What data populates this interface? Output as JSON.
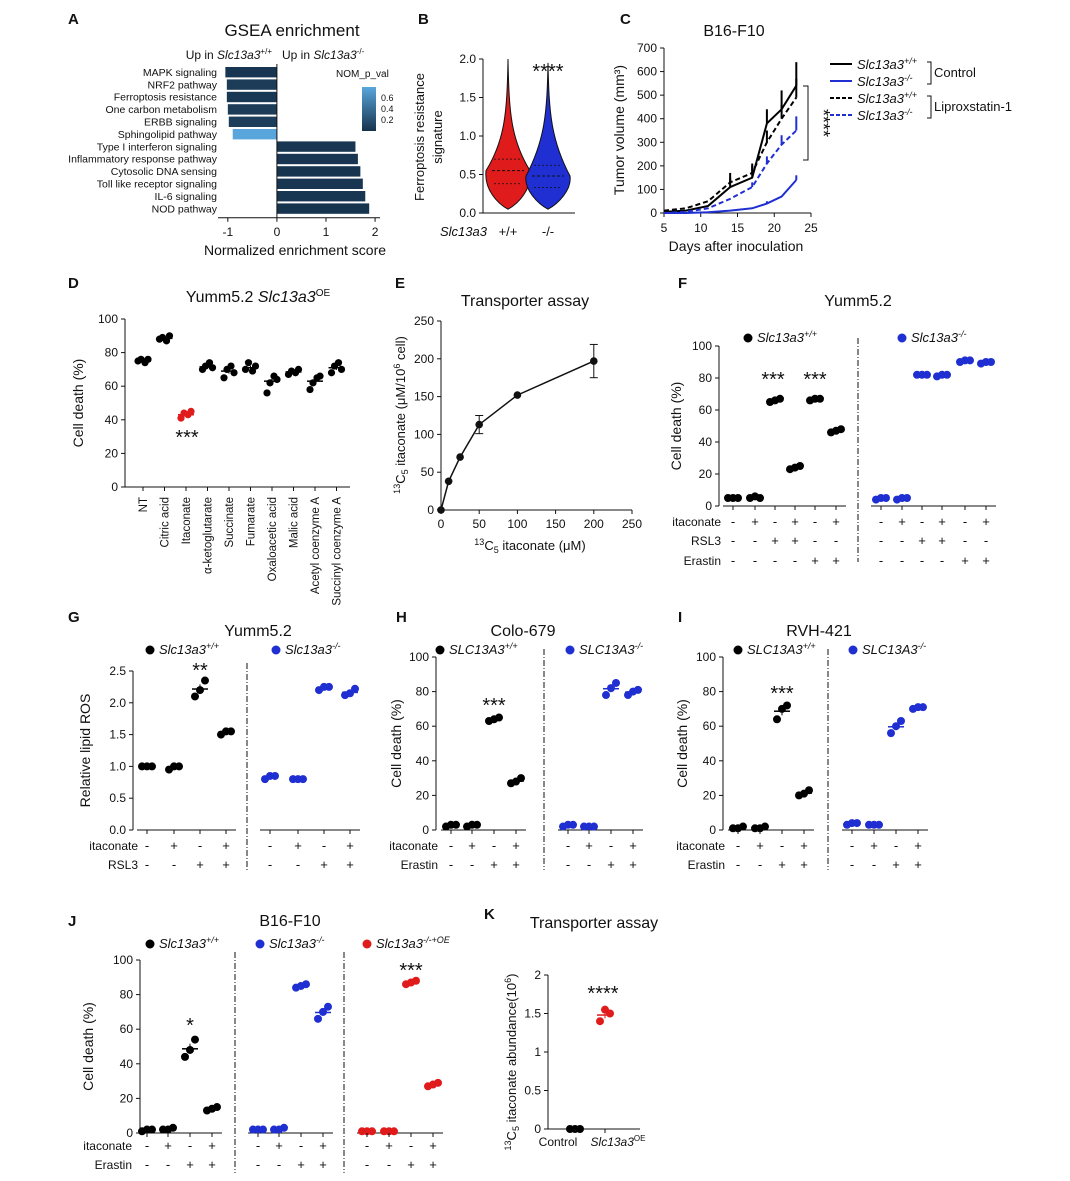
{
  "colors": {
    "black": "#000000",
    "blue": "#1f2fd1",
    "red": "#e01b1b",
    "gsea_dark": "#16324c",
    "gsea_light": "#59a6dc"
  },
  "panels": {
    "A": {
      "letter": "A",
      "title": "GSEA enrichment",
      "xlabel": "Normalized enrichment score",
      "up_left": "Up in Slc13a3+/+",
      "up_right": "Up in Slc13a3-/-",
      "legend_title": "NOM_p_val",
      "legend_ticks": [
        "0.6",
        "0.4",
        "0.2"
      ]
    },
    "B": {
      "letter": "B",
      "ylabel": "Ferroptosis resistance signature",
      "sig": "****",
      "xlabel": "Slc13a3",
      "groups": [
        "+/+",
        "-/-"
      ]
    },
    "C": {
      "letter": "C",
      "title": "B16-F10",
      "xlabel": "Days after inoculation",
      "ylabel": "Tumor volume (mm³)",
      "sig": "****",
      "group_control": "Control",
      "group_lip": "Liproxstatin-1"
    },
    "D": {
      "letter": "D",
      "title": "Yumm5.2 Slc13a3OE",
      "ylabel": "Cell death (%)",
      "sig": "***"
    },
    "E": {
      "letter": "E",
      "title": "Transporter assay",
      "xlabel": "13C5 itaconate (μM)",
      "ylabel": "13C5 itaconate (μM/10⁶ cell)"
    },
    "F": {
      "letter": "F",
      "title": "Yumm5.2",
      "ylabel": "Cell death (%)",
      "legend": [
        "Slc13a3+/+",
        "Slc13a3-/-"
      ],
      "sigs": [
        "***",
        "***"
      ],
      "rows": [
        "itaconate",
        "RSL3",
        "Erastin"
      ]
    },
    "G": {
      "letter": "G",
      "title": "Yumm5.2",
      "ylabel": "Relative lipid ROS",
      "legend": [
        "Slc13a3+/+",
        "Slc13a3-/-"
      ],
      "sigs": [
        "**"
      ],
      "rows": [
        "itaconate",
        "RSL3"
      ]
    },
    "H": {
      "letter": "H",
      "title": "Colo-679",
      "ylabel": "Cell death (%)",
      "legend": [
        "SLC13A3+/+",
        "SLC13A3-/-"
      ],
      "sigs": [
        "***"
      ],
      "rows": [
        "itaconate",
        "Erastin"
      ]
    },
    "I": {
      "letter": "I",
      "title": "RVH-421",
      "ylabel": "Cell death (%)",
      "legend": [
        "SLC13A3+/+",
        "SLC13A3 -/-"
      ],
      "sigs": [
        "***"
      ],
      "rows": [
        "itaconate",
        "Erastin"
      ]
    },
    "J": {
      "letter": "J",
      "title": "B16-F10",
      "ylabel": "Cell death (%)",
      "legend": [
        "Slc13a3+/+",
        "Slc13a3-/-",
        "Slc13a3-/-+OE"
      ],
      "sigs": [
        "*",
        "***"
      ],
      "rows": [
        "itaconate",
        "Erastin"
      ]
    },
    "K": {
      "letter": "K",
      "title": "Transporter assay",
      "ylabel": "13C5 itaconate abundance(10⁶)",
      "sig": "****",
      "categories": [
        "Control",
        "Slc13a3OE"
      ]
    }
  },
  "chart_data": [
    {
      "panel": "A",
      "type": "bar",
      "orientation": "horizontal",
      "categories": [
        "MAPK signaling",
        "NRF2 pathway",
        "Ferroptosis resistance",
        "One carbon metabolism",
        "ERBB signaling",
        "Sphingolipid pathway",
        "Type I interferon signaling",
        "Inflammatory response pathway",
        "Cytosolic DNA sensing",
        "Toll like receptor signaling",
        "IL-6 signaling",
        "NOD pathway"
      ],
      "values": [
        -1.05,
        -1.02,
        -1.02,
        -1.0,
        -0.98,
        -0.9,
        1.6,
        1.65,
        1.7,
        1.75,
        1.8,
        1.88
      ],
      "nom_p_val": [
        0.02,
        0.05,
        0.03,
        0.05,
        0.06,
        0.6,
        0.02,
        0.02,
        0.01,
        0.02,
        0.02,
        0.01
      ],
      "xlim": [
        -1.2,
        2.1
      ],
      "xticks": [
        -1,
        0,
        1,
        2
      ]
    },
    {
      "panel": "B",
      "type": "violin",
      "categories": [
        "+/+",
        "-/-"
      ],
      "median": [
        0.55,
        0.48
      ],
      "q1": [
        0.38,
        0.33
      ],
      "q3": [
        0.7,
        0.62
      ],
      "max": [
        2.0,
        1.95
      ],
      "min": [
        0.05,
        0.05
      ],
      "ylim": [
        0,
        2.0
      ],
      "yticks": [
        0.0,
        0.5,
        1.0,
        1.5,
        2.0
      ]
    },
    {
      "panel": "C",
      "type": "line",
      "xlim": [
        5,
        25
      ],
      "ylim": [
        0,
        700
      ],
      "xticks": [
        5,
        10,
        15,
        20,
        25
      ],
      "yticks": [
        0,
        100,
        200,
        300,
        400,
        500,
        600,
        700
      ],
      "series": [
        {
          "name": "Slc13a3+/+",
          "group": "Control",
          "style": "solid",
          "color": "black",
          "x": [
            5,
            8,
            11,
            14,
            17,
            19,
            21,
            23
          ],
          "y": [
            5,
            10,
            30,
            110,
            150,
            380,
            440,
            540
          ],
          "err": [
            0,
            0,
            0,
            40,
            50,
            60,
            80,
            100
          ]
        },
        {
          "name": "Slc13a3-/-",
          "group": "Control",
          "style": "solid",
          "color": "blue",
          "x": [
            5,
            8,
            11,
            14,
            17,
            19,
            21,
            23
          ],
          "y": [
            0,
            0,
            3,
            10,
            20,
            40,
            70,
            140
          ],
          "err": [
            0,
            0,
            0,
            0,
            0,
            10,
            0,
            20
          ]
        },
        {
          "name": "Slc13a3+/+",
          "group": "Liproxstatin-1",
          "style": "dotted",
          "color": "black",
          "x": [
            5,
            8,
            11,
            14,
            17,
            19,
            21,
            23
          ],
          "y": [
            10,
            20,
            50,
            130,
            170,
            300,
            400,
            490
          ],
          "err": [
            0,
            0,
            0,
            40,
            40,
            50,
            60,
            80
          ]
        },
        {
          "name": "Slc13a3-/-",
          "group": "Liproxstatin-1",
          "style": "dotted",
          "color": "blue",
          "x": [
            5,
            8,
            11,
            14,
            17,
            19,
            21,
            23
          ],
          "y": [
            0,
            5,
            20,
            60,
            110,
            210,
            290,
            350
          ],
          "err": [
            0,
            0,
            0,
            0,
            20,
            30,
            40,
            60
          ]
        }
      ]
    },
    {
      "panel": "D",
      "type": "scatter",
      "categories": [
        "NT",
        "Citric acid",
        "Itaconate",
        "α-ketoglutarate",
        "Succinate",
        "Fumarate",
        "Oxaloacetic acid",
        "Malic acid",
        "Acetyl coenzyme A",
        "Succinyl coenzyme A"
      ],
      "points": [
        [
          75,
          76,
          74,
          76
        ],
        [
          88,
          89,
          87,
          90
        ],
        [
          41,
          44,
          43,
          45
        ],
        [
          70,
          72,
          74,
          71
        ],
        [
          65,
          70,
          72,
          68
        ],
        [
          70,
          74,
          69,
          72
        ],
        [
          56,
          62,
          66,
          64
        ],
        [
          67,
          69,
          68,
          70
        ],
        [
          58,
          62,
          65,
          66
        ],
        [
          68,
          72,
          74,
          70
        ]
      ],
      "mean": [
        75,
        88.5,
        43,
        71.5,
        69,
        71,
        63,
        68.5,
        63,
        71
      ],
      "highlight": "Itaconate",
      "ylim": [
        0,
        100
      ],
      "yticks": [
        0,
        20,
        40,
        60,
        80,
        100
      ]
    },
    {
      "panel": "E",
      "type": "line",
      "x": [
        0,
        10,
        25,
        50,
        100,
        200
      ],
      "y": [
        0,
        38,
        70,
        113,
        152,
        197
      ],
      "err": [
        0,
        0,
        0,
        12,
        0,
        22
      ],
      "xlim": [
        0,
        250
      ],
      "ylim": [
        0,
        250
      ],
      "xticks": [
        0,
        50,
        100,
        150,
        200,
        250
      ],
      "yticks": [
        0,
        50,
        100,
        150,
        200,
        250
      ]
    },
    {
      "panel": "F",
      "type": "scatter",
      "ylim": [
        0,
        100
      ],
      "yticks": [
        0,
        20,
        40,
        60,
        80,
        100
      ],
      "conditions": {
        "itaconate": [
          "-",
          "+",
          "-",
          "+",
          "-",
          "+"
        ],
        "RSL3": [
          "-",
          "-",
          "+",
          "+",
          "-",
          "-"
        ],
        "Erastin": [
          "-",
          "-",
          "-",
          "-",
          "+",
          "+"
        ]
      },
      "series": [
        {
          "name": "Slc13a3+/+",
          "color": "black",
          "points": [
            [
              5,
              5,
              5
            ],
            [
              5,
              6,
              5
            ],
            [
              65,
              66,
              67
            ],
            [
              23,
              24,
              25
            ],
            [
              66,
              67,
              67
            ],
            [
              46,
              47,
              48
            ]
          ]
        },
        {
          "name": "Slc13a3-/-",
          "color": "blue",
          "points": [
            [
              4,
              5,
              5
            ],
            [
              4,
              5,
              5
            ],
            [
              82,
              82,
              82
            ],
            [
              81,
              82,
              82
            ],
            [
              90,
              91,
              91
            ],
            [
              89,
              90,
              90
            ]
          ]
        }
      ]
    },
    {
      "panel": "G",
      "type": "scatter",
      "ylim": [
        0,
        2.5
      ],
      "yticks": [
        0.0,
        0.5,
        1.0,
        1.5,
        2.0,
        2.5
      ],
      "conditions": {
        "itaconate": [
          "-",
          "+",
          "-",
          "+"
        ],
        "RSL3": [
          "-",
          "-",
          "+",
          "+"
        ]
      },
      "series": [
        {
          "name": "Slc13a3+/+",
          "color": "black",
          "points": [
            [
              1.0,
              1.0,
              1.0
            ],
            [
              0.95,
              1.0,
              1.0
            ],
            [
              2.1,
              2.2,
              2.35
            ],
            [
              1.5,
              1.55,
              1.55
            ]
          ]
        },
        {
          "name": "Slc13a3-/-",
          "color": "blue",
          "points": [
            [
              0.8,
              0.85,
              0.85
            ],
            [
              0.8,
              0.8,
              0.8
            ],
            [
              2.2,
              2.25,
              2.25
            ],
            [
              2.12,
              2.15,
              2.22
            ]
          ]
        }
      ]
    },
    {
      "panel": "H",
      "type": "scatter",
      "ylim": [
        0,
        100
      ],
      "yticks": [
        0,
        20,
        40,
        60,
        80,
        100
      ],
      "conditions": {
        "itaconate": [
          "-",
          "+",
          "-",
          "+"
        ],
        "Erastin": [
          "-",
          "-",
          "+",
          "+"
        ]
      },
      "series": [
        {
          "name": "SLC13A3+/+",
          "color": "black",
          "points": [
            [
              2,
              3,
              3
            ],
            [
              2,
              3,
              3
            ],
            [
              63,
              64,
              65
            ],
            [
              27,
              28,
              30
            ]
          ]
        },
        {
          "name": "SLC13A3-/-",
          "color": "blue",
          "points": [
            [
              2,
              3,
              3
            ],
            [
              2,
              2,
              2
            ],
            [
              78,
              82,
              85
            ],
            [
              78,
              80,
              81
            ]
          ]
        }
      ]
    },
    {
      "panel": "I",
      "type": "scatter",
      "ylim": [
        0,
        100
      ],
      "yticks": [
        0,
        20,
        40,
        60,
        80,
        100
      ],
      "conditions": {
        "itaconate": [
          "-",
          "+",
          "-",
          "+"
        ],
        "Erastin": [
          "-",
          "-",
          "+",
          "+"
        ]
      },
      "series": [
        {
          "name": "SLC13A3+/+",
          "color": "black",
          "points": [
            [
              1,
              1,
              2
            ],
            [
              1,
              1,
              2
            ],
            [
              64,
              70,
              72
            ],
            [
              20,
              21,
              23
            ]
          ]
        },
        {
          "name": "SLC13A3 -/-",
          "color": "blue",
          "points": [
            [
              3,
              4,
              4
            ],
            [
              3,
              3,
              3
            ],
            [
              56,
              60,
              63
            ],
            [
              70,
              71,
              71
            ]
          ]
        }
      ]
    },
    {
      "panel": "J",
      "type": "scatter",
      "ylim": [
        0,
        100
      ],
      "yticks": [
        0,
        20,
        40,
        60,
        80,
        100
      ],
      "conditions": {
        "itaconate": [
          "-",
          "+",
          "-",
          "+"
        ],
        "Erastin": [
          "-",
          "-",
          "+",
          "+"
        ]
      },
      "series": [
        {
          "name": "Slc13a3+/+",
          "color": "black",
          "points": [
            [
              1,
              2,
              2
            ],
            [
              2,
              2,
              3
            ],
            [
              44,
              48,
              54
            ],
            [
              13,
              14,
              15
            ]
          ]
        },
        {
          "name": "Slc13a3-/-",
          "color": "blue",
          "points": [
            [
              2,
              2,
              2
            ],
            [
              2,
              2,
              3
            ],
            [
              84,
              85,
              86
            ],
            [
              66,
              70,
              73
            ]
          ]
        },
        {
          "name": "Slc13a3-/-+OE",
          "color": "red",
          "points": [
            [
              1,
              1,
              1
            ],
            [
              1,
              1,
              1
            ],
            [
              86,
              87,
              88
            ],
            [
              27,
              28,
              29
            ]
          ]
        }
      ]
    },
    {
      "panel": "K",
      "type": "scatter",
      "categories": [
        "Control",
        "Slc13a3OE"
      ],
      "points": [
        [
          0,
          0,
          0
        ],
        [
          1.4,
          1.55,
          1.5
        ]
      ],
      "mean": [
        0,
        1.48
      ],
      "ylim": [
        0,
        2.0
      ],
      "yticks": [
        0,
        0.5,
        1.0,
        1.5,
        2.0
      ]
    }
  ]
}
